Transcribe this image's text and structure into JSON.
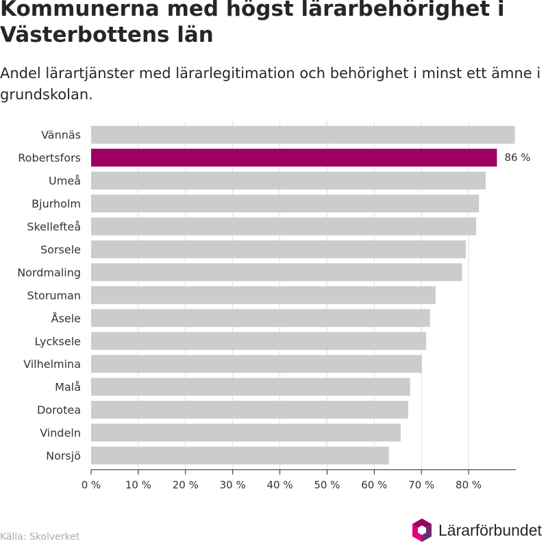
{
  "header": {
    "title": "Kommunerna med högst lärarbehörighet i Västerbottens län",
    "subtitle": "Andel lärartjänster med lärarlegitimation och behörighet i minst ett ämne i grundskolan."
  },
  "footer": {
    "source": "Källa: Skolverket",
    "brand": "Lärarförbundet"
  },
  "colors": {
    "bar": "#cccccc",
    "highlight": "#9b0062",
    "grid": "#dddddd",
    "axis": "#222222",
    "logo": [
      "#e2007a",
      "#9b0062",
      "#6c2d6d"
    ]
  },
  "chart_data": {
    "type": "bar",
    "orientation": "horizontal",
    "categories": [
      "Vännäs",
      "Robertsfors",
      "Umeå",
      "Bjurholm",
      "Skellefteå",
      "Sorsele",
      "Nordmaling",
      "Storuman",
      "Åsele",
      "Lycksele",
      "Vilhelmina",
      "Malå",
      "Dorotea",
      "Vindeln",
      "Norsjö"
    ],
    "values": [
      89.8,
      86,
      83.6,
      82.2,
      81.6,
      79.4,
      78.6,
      73,
      71.8,
      71,
      70.1,
      67.6,
      67.2,
      65.6,
      63.1
    ],
    "highlight_index": 1,
    "data_labels": [
      {
        "index": 1,
        "text": "86 %"
      }
    ],
    "xlim": [
      0,
      90
    ],
    "ticks": [
      0,
      10,
      20,
      30,
      40,
      50,
      60,
      70,
      80
    ],
    "tick_labels": [
      "0 %",
      "10 %",
      "20 %",
      "30 %",
      "40 %",
      "50 %",
      "60 %",
      "70 %",
      "80 %"
    ],
    "grid": true,
    "legend": "none"
  }
}
